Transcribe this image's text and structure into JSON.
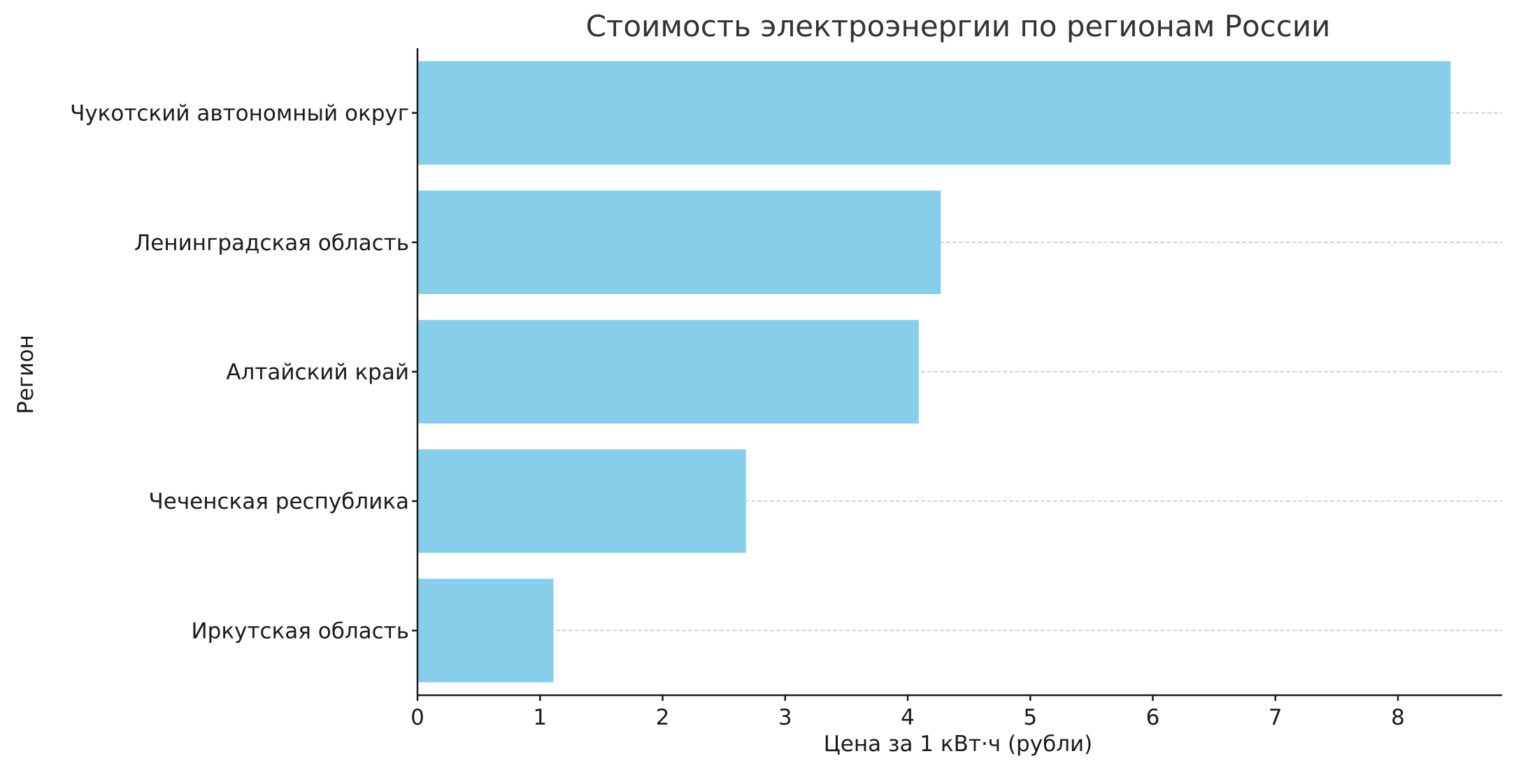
{
  "chart_data": {
    "type": "bar",
    "orientation": "horizontal",
    "title": "Стоимость электроэнергии по регионам России",
    "xlabel": "Цена за 1 кВт·ч (рубли)",
    "ylabel": "Регион",
    "categories": [
      "Чукотский автономный округ",
      "Ленинградская область",
      "Алтайский край",
      "Чеченская республика",
      "Иркутская область"
    ],
    "values": [
      8.43,
      4.27,
      4.09,
      2.68,
      1.11
    ],
    "xticks": [
      "0",
      "1",
      "2",
      "3",
      "4",
      "5",
      "6",
      "7",
      "8"
    ],
    "xlim": [
      0,
      8.85
    ],
    "bar_color": "#87ceeb",
    "grid": "horizontal dashed",
    "legend": "none"
  }
}
